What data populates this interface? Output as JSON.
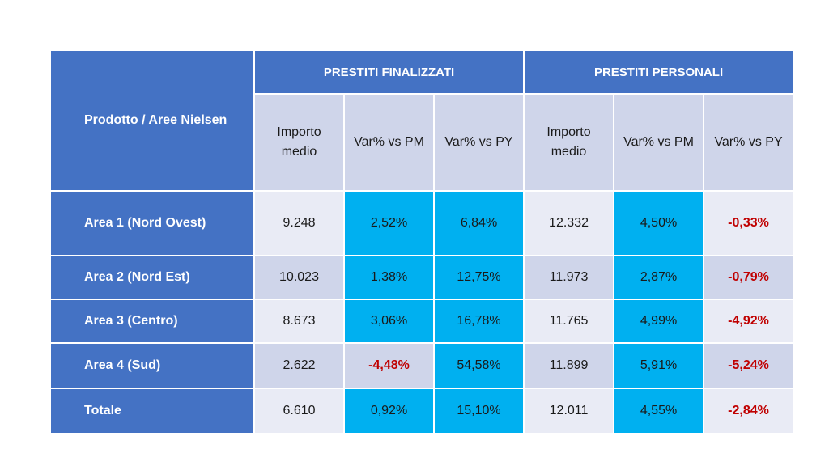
{
  "table": {
    "corner_label": "Prodotto / Aree Nielsen",
    "groups": [
      "PRESTITI FINALIZZATI",
      "PRESTITI PERSONALI"
    ],
    "sub_headers": [
      "Importo medio",
      "Var% vs PM",
      "Var% vs PY",
      "Importo medio",
      "Var% vs PM",
      "Var% vs PY"
    ],
    "rows": [
      {
        "label": "Area 1 (Nord Ovest)",
        "cells": [
          "9.248",
          "2,52%",
          "6,84%",
          "12.332",
          "4,50%",
          "-0,33%"
        ]
      },
      {
        "label": "Area 2 (Nord Est)",
        "cells": [
          "10.023",
          "1,38%",
          "12,75%",
          "11.973",
          "2,87%",
          "-0,79%"
        ]
      },
      {
        "label": "Area 3 (Centro)",
        "cells": [
          "8.673",
          "3,06%",
          "16,78%",
          "11.765",
          "4,99%",
          "-4,92%"
        ]
      },
      {
        "label": "Area 4 (Sud)",
        "cells": [
          "2.622",
          "-4,48%",
          "54,58%",
          "11.899",
          "5,91%",
          "-5,24%"
        ]
      },
      {
        "label": "Totale",
        "cells": [
          "6.610",
          "0,92%",
          "15,10%",
          "12.011",
          "4,55%",
          "-2,84%"
        ]
      }
    ],
    "colors": {
      "header_blue": "#4472c4",
      "sub_header": "#cfd5ea",
      "row_light": "#e9ebf5",
      "highlight_cyan": "#00b0f0",
      "negative_red": "#c00000"
    }
  }
}
